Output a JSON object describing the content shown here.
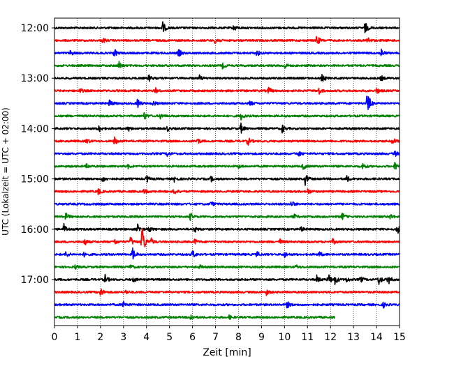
{
  "chart_data": {
    "type": "line",
    "title": "",
    "xlabel": "Zeit  [min]",
    "ylabel": "UTC (Lokalzeit = UTC + 02:00)",
    "xlim": [
      0,
      15
    ],
    "x_ticks": [
      "0",
      "1",
      "2",
      "3",
      "4",
      "5",
      "6",
      "7",
      "8",
      "9",
      "10",
      "11",
      "12",
      "13",
      "14",
      "15"
    ],
    "y_ticks": [
      "12:00",
      "13:00",
      "14:00",
      "15:00",
      "16:00",
      "17:00"
    ],
    "grid": "vertical dotted",
    "trace_interval_minutes": 15,
    "trace_colors": [
      "#000000",
      "#ff0000",
      "#0000ff",
      "#008000"
    ],
    "traces": [
      {
        "start": "12:00",
        "color": "#000000",
        "end_min": 15,
        "events": [
          [
            4.7,
            1.0
          ],
          [
            7.8,
            0.5
          ],
          [
            13.5,
            0.9
          ]
        ]
      },
      {
        "start": "12:15",
        "color": "#ff0000",
        "end_min": 15,
        "events": [
          [
            2.1,
            0.4
          ],
          [
            7.0,
            0.8
          ],
          [
            11.4,
            0.9
          ],
          [
            13.6,
            0.6
          ]
        ]
      },
      {
        "start": "12:30",
        "color": "#0000ff",
        "end_min": 15,
        "events": [
          [
            0.7,
            0.4
          ],
          [
            2.6,
            0.6
          ],
          [
            5.4,
            0.6
          ],
          [
            8.8,
            0.5
          ],
          [
            14.2,
            0.7
          ]
        ]
      },
      {
        "start": "12:45",
        "color": "#008000",
        "end_min": 15,
        "events": [
          [
            2.8,
            0.7
          ],
          [
            7.3,
            0.4
          ],
          [
            10.0,
            0.5
          ]
        ]
      },
      {
        "start": "13:00",
        "color": "#000000",
        "end_min": 15,
        "events": [
          [
            4.1,
            0.5
          ],
          [
            6.3,
            0.4
          ],
          [
            11.6,
            0.9
          ],
          [
            14.2,
            0.4
          ]
        ]
      },
      {
        "start": "13:15",
        "color": "#ff0000",
        "end_min": 15,
        "events": [
          [
            1.1,
            0.4
          ],
          [
            4.4,
            0.4
          ],
          [
            9.3,
            0.6
          ],
          [
            11.5,
            0.5
          ],
          [
            14.0,
            0.5
          ]
        ]
      },
      {
        "start": "13:30",
        "color": "#0000ff",
        "end_min": 15,
        "events": [
          [
            2.4,
            0.6
          ],
          [
            3.6,
            0.8
          ],
          [
            4.3,
            0.4
          ],
          [
            8.5,
            0.4
          ],
          [
            13.6,
            2.2
          ]
        ]
      },
      {
        "start": "13:45",
        "color": "#008000",
        "end_min": 15,
        "events": [
          [
            3.9,
            0.6
          ],
          [
            4.6,
            0.4
          ],
          [
            8.1,
            0.6
          ]
        ]
      },
      {
        "start": "14:00",
        "color": "#000000",
        "end_min": 15,
        "events": [
          [
            1.9,
            0.7
          ],
          [
            3.2,
            0.4
          ],
          [
            4.9,
            0.4
          ],
          [
            8.1,
            0.8
          ],
          [
            9.9,
            0.7
          ]
        ]
      },
      {
        "start": "14:15",
        "color": "#ff0000",
        "end_min": 15,
        "events": [
          [
            1.4,
            0.4
          ],
          [
            2.6,
            0.7
          ],
          [
            6.2,
            0.5
          ],
          [
            8.4,
            0.7
          ],
          [
            14.7,
            0.6
          ]
        ]
      },
      {
        "start": "14:30",
        "color": "#0000ff",
        "end_min": 15,
        "events": [
          [
            4.9,
            0.4
          ],
          [
            10.6,
            0.5
          ],
          [
            14.8,
            0.4
          ]
        ]
      },
      {
        "start": "14:45",
        "color": "#008000",
        "end_min": 15,
        "events": [
          [
            1.4,
            0.3
          ],
          [
            3.2,
            0.3
          ],
          [
            8.0,
            0.3
          ],
          [
            10.8,
            0.5
          ],
          [
            13.4,
            0.5
          ],
          [
            14.8,
            0.7
          ]
        ]
      },
      {
        "start": "15:00",
        "color": "#000000",
        "end_min": 15,
        "events": [
          [
            2.1,
            0.5
          ],
          [
            4.0,
            0.6
          ],
          [
            5.2,
            0.4
          ],
          [
            6.8,
            0.4
          ],
          [
            10.9,
            0.9
          ],
          [
            12.7,
            0.5
          ]
        ]
      },
      {
        "start": "15:15",
        "color": "#ff0000",
        "end_min": 15,
        "events": [
          [
            1.9,
            0.5
          ],
          [
            3.9,
            0.5
          ],
          [
            5.2,
            0.6
          ],
          [
            11.0,
            0.5
          ]
        ]
      },
      {
        "start": "15:30",
        "color": "#0000ff",
        "end_min": 15,
        "events": [
          [
            6.8,
            0.4
          ],
          [
            10.3,
            0.5
          ]
        ]
      },
      {
        "start": "15:45",
        "color": "#008000",
        "end_min": 15,
        "events": [
          [
            0.5,
            0.6
          ],
          [
            5.9,
            0.6
          ],
          [
            10.4,
            0.4
          ],
          [
            12.5,
            0.6
          ],
          [
            14.6,
            0.4
          ]
        ]
      },
      {
        "start": "16:00",
        "color": "#000000",
        "end_min": 15,
        "events": [
          [
            0.4,
            0.9
          ],
          [
            3.6,
            0.8
          ],
          [
            4.1,
            0.5
          ],
          [
            6.1,
            0.5
          ],
          [
            10.7,
            0.4
          ],
          [
            14.9,
            0.8
          ]
        ]
      },
      {
        "start": "16:15",
        "color": "#ff0000",
        "end_min": 15,
        "events": [
          [
            1.3,
            0.6
          ],
          [
            2.6,
            0.5
          ],
          [
            3.3,
            0.8
          ],
          [
            3.8,
            3.2
          ],
          [
            4.2,
            0.5
          ],
          [
            6.1,
            0.4
          ],
          [
            9.8,
            0.4
          ],
          [
            12.1,
            0.4
          ]
        ]
      },
      {
        "start": "16:30",
        "color": "#0000ff",
        "end_min": 15,
        "events": [
          [
            0.5,
            0.5
          ],
          [
            1.3,
            0.4
          ],
          [
            3.4,
            1.0
          ],
          [
            6.0,
            0.7
          ],
          [
            8.8,
            0.4
          ],
          [
            10.0,
            0.4
          ],
          [
            11.5,
            0.4
          ]
        ]
      },
      {
        "start": "16:45",
        "color": "#008000",
        "end_min": 15,
        "events": [
          [
            0.9,
            0.3
          ],
          [
            3.3,
            0.3
          ],
          [
            6.3,
            0.3
          ],
          [
            10.5,
            0.3
          ]
        ]
      },
      {
        "start": "17:00",
        "color": "#000000",
        "end_min": 15,
        "events": [
          [
            2.2,
            0.7
          ],
          [
            3.4,
            0.5
          ],
          [
            11.4,
            0.6
          ],
          [
            11.9,
            1.0
          ],
          [
            12.2,
            0.8
          ],
          [
            12.7,
            0.4
          ],
          [
            13.3,
            0.5
          ],
          [
            14.1,
            0.9
          ],
          [
            14.5,
            0.9
          ]
        ]
      },
      {
        "start": "17:15",
        "color": "#ff0000",
        "end_min": 15,
        "events": [
          [
            2.0,
            0.7
          ],
          [
            3.1,
            0.3
          ],
          [
            9.2,
            0.5
          ]
        ]
      },
      {
        "start": "17:30",
        "color": "#0000ff",
        "end_min": 15,
        "events": [
          [
            3.0,
            0.6
          ],
          [
            10.1,
            0.6
          ],
          [
            14.3,
            0.4
          ]
        ]
      },
      {
        "start": "17:45",
        "color": "#008000",
        "end_min": 12.2,
        "events": [
          [
            5.9,
            0.6
          ],
          [
            7.6,
            0.3
          ]
        ]
      }
    ]
  }
}
